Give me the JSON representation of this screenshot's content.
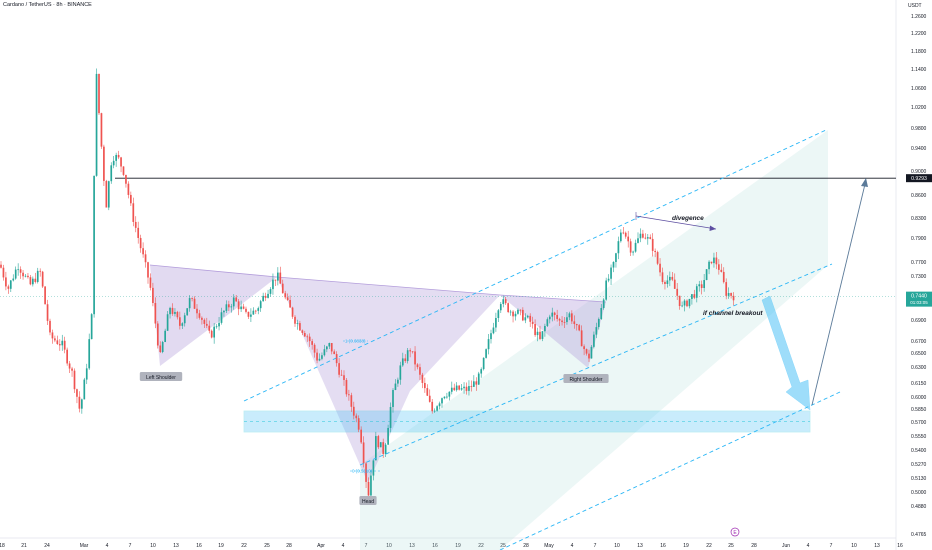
{
  "header": {
    "title": "Cardano / TetherUS · 8h · BINANCE",
    "currency": "USDT"
  },
  "labels": {
    "left_shoulder": "Left Shoulder",
    "head": "Head",
    "right_shoulder": "Right Shoulder",
    "divergence": "divegence",
    "breakout": "if channel breakout",
    "fib_top": "1 (0.6838)",
    "fib_bottom": "0 (0.5110)",
    "events_icon": "E"
  },
  "price_tags": {
    "current": "0.7440",
    "countdown": "01:03:05",
    "level": "0.9293"
  },
  "colors": {
    "up": "#26a69a",
    "down": "#ef5350",
    "channel": "#29b6f6",
    "pattern_fill": "#b39ddb",
    "zone": "#4fc3f7",
    "arrow": "#4fc3f7",
    "resistance": "#131722",
    "price_tag": "#26a69a"
  },
  "chart_data": {
    "type": "candlestick",
    "title": "Cardano / TetherUS · 8h · BINANCE",
    "ylabel": "USDT",
    "ylim": [
      0.4765,
      1.32
    ],
    "scale": "log",
    "y_ticks": [
      "1.2600",
      "1.2200",
      "1.1800",
      "1.1400",
      "1.0600",
      "1.0200",
      "0.9800",
      "0.9400",
      "0.9000",
      "0.8600",
      "0.8300",
      "0.7900",
      "0.7700",
      "0.7300",
      "0.7100",
      "0.6900",
      "0.6700",
      "0.6500",
      "0.6300",
      "0.6150",
      "0.6000",
      "0.5850",
      "0.5700",
      "0.5550",
      "0.5400",
      "0.5270",
      "0.5130",
      "0.5000",
      "0.4880",
      "0.4765"
    ],
    "x_ticks": [
      "18",
      "21",
      "24",
      "Mar",
      "4",
      "7",
      "10",
      "13",
      "16",
      "19",
      "22",
      "25",
      "28",
      "Apr",
      "4",
      "7",
      "10",
      "13",
      "16",
      "19",
      "22",
      "25",
      "28",
      "May",
      "4",
      "7",
      "10",
      "13",
      "16",
      "19",
      "22",
      "25",
      "28",
      "Jun",
      "4",
      "7",
      "10",
      "13",
      "16"
    ],
    "resistance_level": 0.9293,
    "current_price": 0.744,
    "demand_zone": [
      0.572,
      0.6
    ],
    "head_and_shoulders": {
      "left_shoulder": 0.663,
      "head": 0.511,
      "right_shoulder": 0.654,
      "neckline": [
        0.775,
        0.752,
        0.738
      ]
    },
    "fib_levels": [
      {
        "level": 1,
        "price": 0.6838
      },
      {
        "level": 0,
        "price": 0.511
      }
    ],
    "channel_lines": [
      "upper",
      "middle",
      "lower"
    ],
    "projection": {
      "drop_target": 0.6,
      "rally_target": 0.9293
    }
  }
}
